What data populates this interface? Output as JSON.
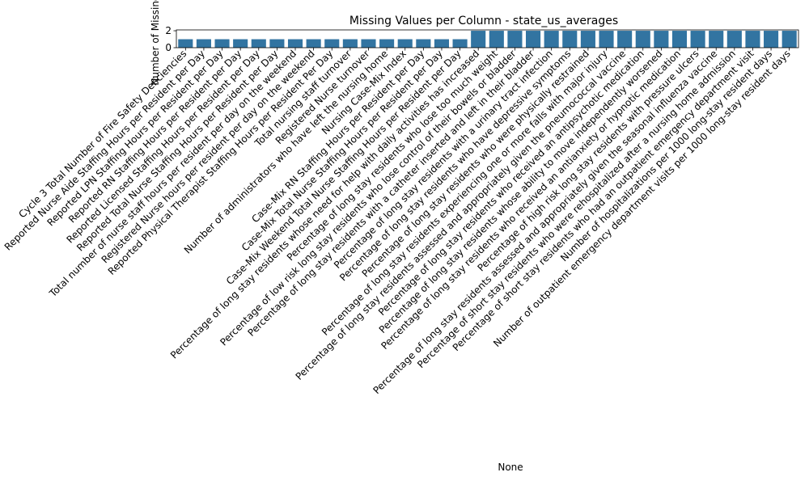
{
  "chart_data": {
    "type": "bar",
    "title": "Missing Values per Column - state_us_averages",
    "xlabel": "None",
    "ylabel": "Number of Missing Values",
    "ylim": [
      0,
      2.1
    ],
    "yticks": [
      0,
      2
    ],
    "grid": false,
    "bar_color": "#3274a1",
    "categories": [
      "Cycle 3 Total Number of Fire Safety Deficiencies",
      "Reported Nurse Aide Staffing Hours per Resident per Day",
      "Reported LPN Staffing Hours per Resident per Day",
      "Reported RN Staffing Hours per Resident per Day",
      "Reported Licensed Staffing Hours per Resident per Day",
      "Reported Total Nurse Staffing Hours per Resident per Day",
      "Total number of nurse staff hours per resident per day on the weekend",
      "Registered Nurse hours per resident per day on the weekend",
      "Reported Physical Therapist Staffing Hours per Resident Per Day",
      "Total nursing staff turnover",
      "Registered Nurse turnover",
      "Number of administrators who have left the nursing home",
      "Nursing Case-Mix Index",
      "Case-Mix RN Staffing Hours per Resident per Day",
      "Case-Mix Total Nurse Staffing Hours per Resident per Day",
      "Case-Mix Weekend Total Nurse Staffing Hours per Resident per Day",
      "Percentage of long stay residents whose need for help with daily activities has increased",
      "Percentage of long stay residents who lose too much weight",
      "Percentage of low risk long stay residents who lose control of their bowels or bladder",
      "Percentage of long stay residents with a catheter inserted and left in their bladder",
      "Percentage of long stay residents with a urinary tract infection",
      "Percentage of long stay residents who have depressive symptoms",
      "Percentage of long stay residents who were physically restrained",
      "Percentage of long stay residents experiencing one or more falls with major injury",
      "Percentage of long stay residents assessed and appropriately given the pneumococcal vaccine",
      "Percentage of long stay residents who received an antipsychotic medication",
      "Percentage of long stay residents whose ability to move independently worsened",
      "Percentage of long stay residents who received an antianxiety or hypnotic medication",
      "Percentage of high risk long stay residents with pressure ulcers",
      "Percentage of long stay residents assessed and appropriately given the seasonal influenza vaccine",
      "Percentage of short stay residents who were rehospitalized after a nursing home admission",
      "Percentage of short stay residents who had an outpatient emergency department visit",
      "Number of hospitalizations per 1000 long-stay resident days",
      "Number of outpatient emergency department visits per 1000 long-stay resident days"
    ],
    "values": [
      1,
      1,
      1,
      1,
      1,
      1,
      1,
      1,
      1,
      1,
      1,
      1,
      1,
      1,
      1,
      1,
      2,
      2,
      2,
      2,
      2,
      2,
      2,
      2,
      2,
      2,
      2,
      2,
      2,
      2,
      2,
      2,
      2,
      2
    ]
  }
}
